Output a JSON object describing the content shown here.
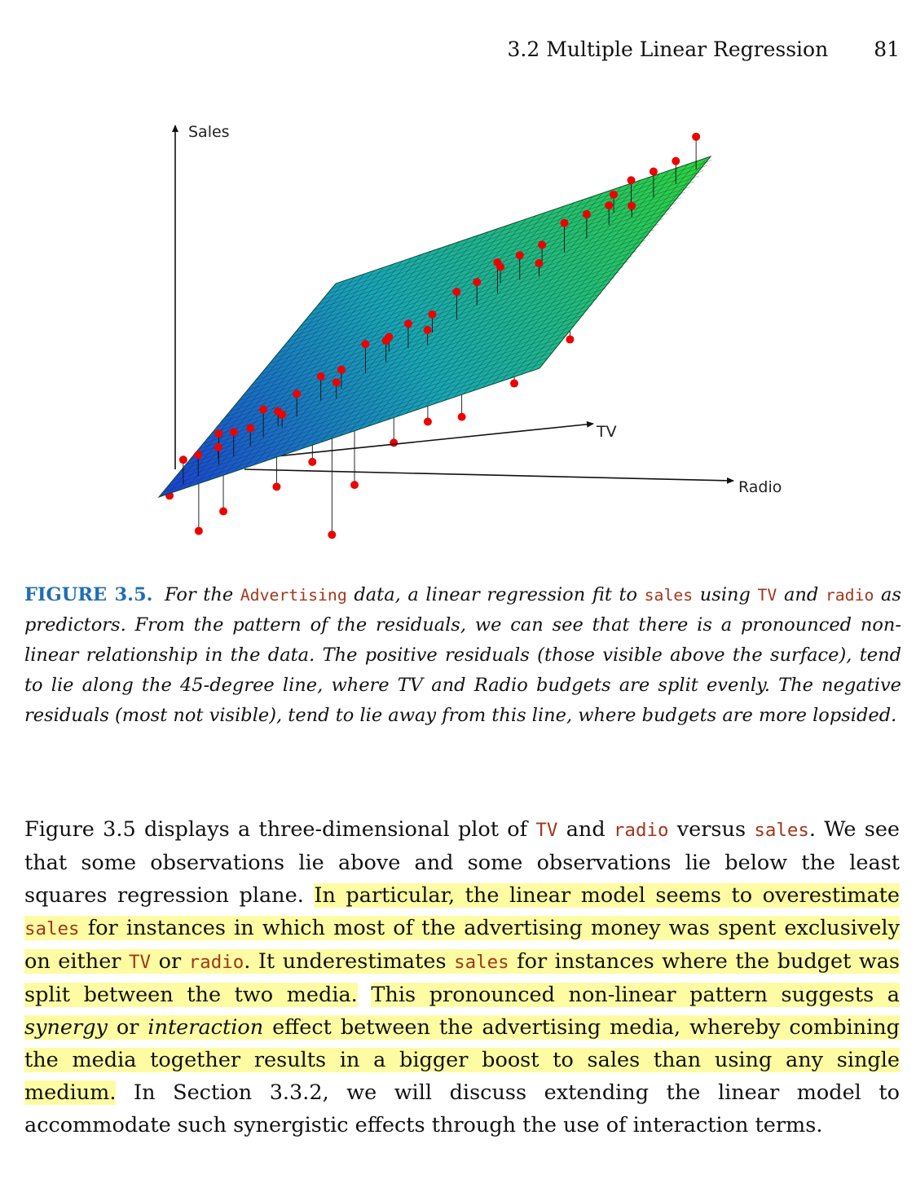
{
  "header": {
    "section_title": "3.2 Multiple Linear Regression",
    "page_number": "81"
  },
  "figure": {
    "axis_labels": {
      "z": "Sales",
      "x": "TV",
      "y": "Radio"
    },
    "colors": {
      "plane_low": "#1c3fd6",
      "plane_high": "#2fd43a",
      "points": "#ee0000"
    }
  },
  "caption": {
    "label": "FIGURE 3.5.",
    "s1": "For the",
    "c_advertising": "Advertising",
    "s2": "data, a linear regression fit to",
    "c_sales": "sales",
    "s3": "using",
    "c_tv": "TV",
    "s4": "and",
    "c_radio": "radio",
    "s5": "as predictors. From the pattern of the residuals, we can see that there is a pronounced non-linear relationship in the data. The positive residuals (those visible above the surface), tend to lie along the 45-degree line, where TV and Radio budgets are split evenly. The negative residuals (most not visible), tend to lie away from this line, where budgets are more lopsided."
  },
  "body": {
    "p1": "Figure 3.5 displays a three-dimensional plot of",
    "c_tv": "TV",
    "p2": "and",
    "c_radio": "radio",
    "p3": "versus",
    "c_sales": "sales",
    "p4": ". We see that some observations lie above and some observations lie below the least squares regression plane.",
    "h1": "In particular, the linear model seems to overestimate",
    "h_c_sales": "sales",
    "h2": "for instances in which most of the advertising money was spent exclusively on either",
    "h_c_tv": "TV",
    "h3": "or",
    "h_c_radio": "radio",
    "h4": ". It underestimates",
    "h_c_sales2": "sales",
    "h5": "for instances where the budget was split between the two media.",
    "h6": "This pronounced non-linear pattern suggests a",
    "h_synergy": "synergy",
    "h7": "or",
    "h_interaction": "interaction",
    "h8": "effect between the advertising media, whereby combining the media together results in a bigger boost to sales than using any single medium.",
    "p5": "In Section 3.3.2, we will discuss extending the linear model to accommodate such synergistic effects through the use of interaction terms."
  }
}
